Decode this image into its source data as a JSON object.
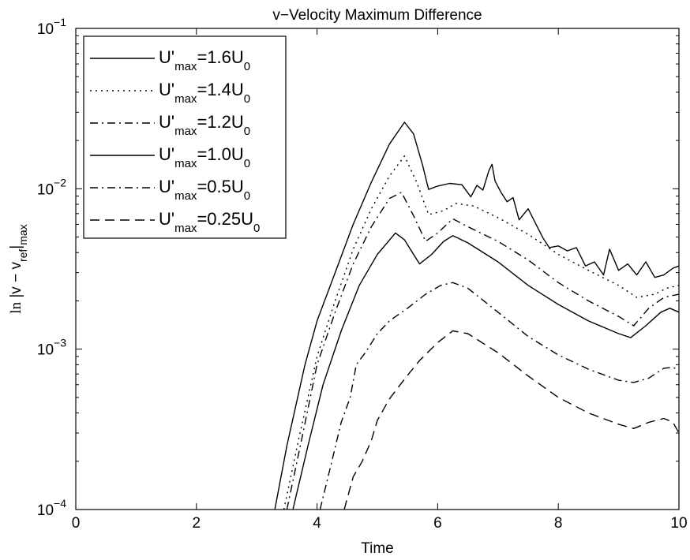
{
  "chart_data": {
    "type": "line",
    "title": "v−Velocity Maximum Difference",
    "xlabel": "Time",
    "ylabel": "ln |v − v_ref|max",
    "xlim": [
      0,
      10
    ],
    "ylim": [
      0.0001,
      0.1
    ],
    "yscale": "log",
    "grid": false,
    "legend_position": "top-left",
    "x_ticks": [
      0,
      2,
      4,
      6,
      8,
      10
    ],
    "x_tick_labels": [
      "0",
      "2",
      "4",
      "6",
      "8",
      "10"
    ],
    "y_ticks": [
      0.0001,
      0.001,
      0.01,
      0.1
    ],
    "y_tick_labels": [
      {
        "base": "10",
        "exp": "−4"
      },
      {
        "base": "10",
        "exp": "−3"
      },
      {
        "base": "10",
        "exp": "−2"
      },
      {
        "base": "10",
        "exp": "−1"
      }
    ],
    "series": [
      {
        "name": "U'max=1.6U0",
        "legend": {
          "prefix": "U'",
          "sub1": "max",
          "middle": "=1.6U",
          "sub2": "0"
        },
        "dash": "solid",
        "x": [
          3.3,
          3.5,
          3.8,
          4.0,
          4.3,
          4.6,
          4.9,
          5.2,
          5.45,
          5.6,
          5.75,
          5.85,
          6.0,
          6.2,
          6.4,
          6.55,
          6.65,
          6.75,
          6.85,
          6.9,
          6.95,
          7.05,
          7.15,
          7.25,
          7.35,
          7.5,
          7.65,
          7.75,
          7.85,
          8.0,
          8.15,
          8.3,
          8.45,
          8.6,
          8.75,
          8.85,
          9.0,
          9.15,
          9.3,
          9.45,
          9.6,
          9.75,
          9.9,
          10.0
        ],
        "y": [
          0.0001,
          0.00025,
          0.0008,
          0.0015,
          0.003,
          0.006,
          0.011,
          0.019,
          0.026,
          0.022,
          0.014,
          0.0099,
          0.0104,
          0.0108,
          0.0106,
          0.0089,
          0.0105,
          0.0098,
          0.013,
          0.0142,
          0.0112,
          0.0095,
          0.0083,
          0.0088,
          0.0064,
          0.0075,
          0.0058,
          0.0049,
          0.0043,
          0.0044,
          0.0041,
          0.0043,
          0.0033,
          0.0035,
          0.0029,
          0.0042,
          0.0031,
          0.0034,
          0.0029,
          0.0035,
          0.0028,
          0.0029,
          0.0032,
          0.0033
        ]
      },
      {
        "name": "U'max=1.4U0",
        "legend": {
          "prefix": "U'",
          "sub1": "max",
          "middle": "=1.4U",
          "sub2": "0"
        },
        "dash": "dotted",
        "x": [
          3.45,
          3.7,
          4.0,
          4.3,
          4.6,
          4.9,
          5.2,
          5.45,
          5.65,
          5.85,
          6.1,
          6.3,
          6.6,
          7.0,
          7.5,
          8.0,
          8.5,
          9.0,
          9.3,
          9.6,
          9.8,
          10.0
        ],
        "y": [
          0.0001,
          0.00028,
          0.0009,
          0.002,
          0.0042,
          0.0075,
          0.012,
          0.016,
          0.011,
          0.0069,
          0.0073,
          0.0081,
          0.0078,
          0.0066,
          0.0052,
          0.0039,
          0.0031,
          0.0025,
          0.0021,
          0.0022,
          0.0024,
          0.0025
        ]
      },
      {
        "name": "U'max=1.2U0",
        "legend": {
          "prefix": "U'",
          "sub1": "max",
          "middle": "=1.2U",
          "sub2": "0"
        },
        "dash": "dashdot",
        "x": [
          3.5,
          3.75,
          4.0,
          4.3,
          4.6,
          4.9,
          5.2,
          5.4,
          5.6,
          5.8,
          6.0,
          6.25,
          6.5,
          7.0,
          7.5,
          8.0,
          8.5,
          9.0,
          9.25,
          9.5,
          9.75,
          10.0
        ],
        "y": [
          0.0001,
          0.00028,
          0.0008,
          0.0017,
          0.0034,
          0.0058,
          0.0087,
          0.0095,
          0.0068,
          0.0047,
          0.0053,
          0.0065,
          0.0058,
          0.0047,
          0.0036,
          0.0026,
          0.002,
          0.0016,
          0.0014,
          0.0018,
          0.0021,
          0.0022
        ]
      },
      {
        "name": "U'max=1.0U0",
        "legend": {
          "prefix": "U'",
          "sub1": "max",
          "middle": "=1.0U",
          "sub2": "0"
        },
        "dash": "solid",
        "x": [
          3.6,
          3.85,
          4.1,
          4.4,
          4.7,
          5.0,
          5.3,
          5.45,
          5.6,
          5.7,
          5.9,
          6.1,
          6.25,
          6.5,
          7.0,
          7.5,
          8.0,
          8.5,
          9.0,
          9.2,
          9.45,
          9.7,
          9.85,
          10.0
        ],
        "y": [
          0.0001,
          0.00025,
          0.0006,
          0.0013,
          0.0025,
          0.0039,
          0.0053,
          0.0048,
          0.0039,
          0.0034,
          0.0039,
          0.0047,
          0.0051,
          0.0046,
          0.0035,
          0.0025,
          0.0019,
          0.0015,
          0.00125,
          0.00118,
          0.0014,
          0.0017,
          0.0018,
          0.0017
        ]
      },
      {
        "name": "U'max=0.5U0",
        "legend": {
          "prefix": "U'",
          "sub1": "max",
          "middle": "=0.5U",
          "sub2": "0"
        },
        "dash": "dashdot",
        "x": [
          4.05,
          4.2,
          4.4,
          4.55,
          4.65,
          4.8,
          5.0,
          5.2,
          5.5,
          5.8,
          6.05,
          6.25,
          6.5,
          7.0,
          7.5,
          8.0,
          8.5,
          9.0,
          9.25,
          9.5,
          9.75,
          9.9,
          10.0
        ],
        "y": [
          0.0001,
          0.00017,
          0.00035,
          0.0005,
          0.0008,
          0.00095,
          0.00125,
          0.0015,
          0.0018,
          0.0022,
          0.0025,
          0.0026,
          0.0024,
          0.0017,
          0.0012,
          0.00092,
          0.00075,
          0.00064,
          0.00062,
          0.00066,
          0.00076,
          0.00077,
          0.00074
        ]
      },
      {
        "name": "U'max=0.25U0",
        "legend": {
          "prefix": "U'",
          "sub1": "max",
          "middle": "=0.25U",
          "sub2": "0"
        },
        "dash": "dashed",
        "x": [
          4.45,
          4.6,
          4.75,
          4.9,
          5.0,
          5.2,
          5.45,
          5.7,
          6.0,
          6.25,
          6.5,
          7.0,
          7.5,
          8.0,
          8.5,
          9.0,
          9.25,
          9.5,
          9.75,
          9.9,
          10.0
        ],
        "y": [
          0.0001,
          0.00016,
          0.0002,
          0.00027,
          0.00036,
          0.00049,
          0.00065,
          0.00085,
          0.0011,
          0.0013,
          0.00125,
          0.00095,
          0.00068,
          0.0005,
          0.0004,
          0.00034,
          0.00032,
          0.00035,
          0.00037,
          0.00035,
          0.0003
        ]
      }
    ]
  }
}
